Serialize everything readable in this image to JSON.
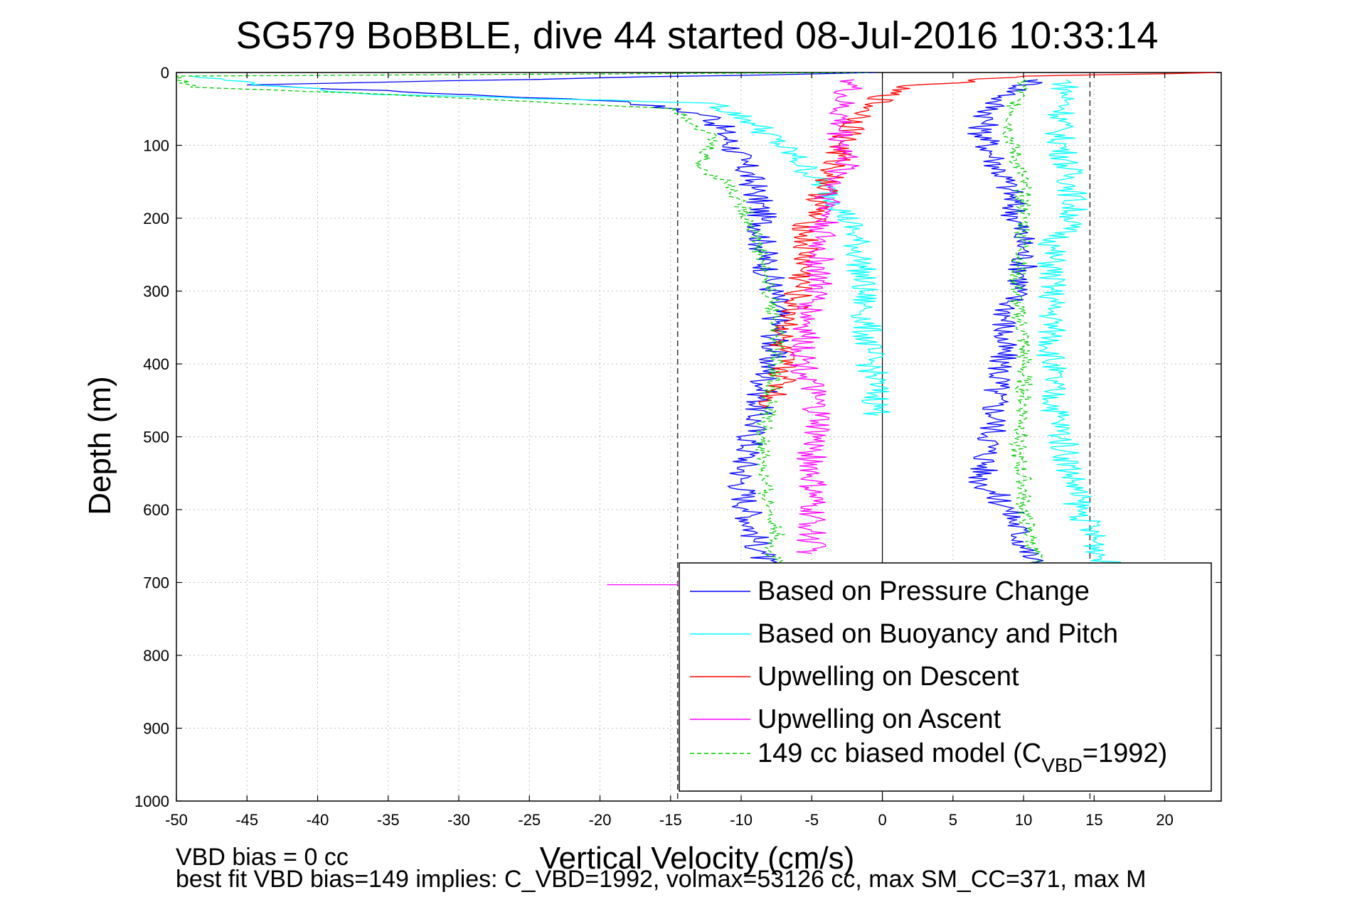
{
  "chart_data": {
    "type": "line",
    "title": "SG579 BoBBLE, dive 44 started 08-Jul-2016 10:33:14",
    "xlabel": "Vertical Velocity (cm/s)",
    "ylabel": "Depth (m)",
    "xlim": [
      -50,
      24
    ],
    "ylim": [
      0,
      1000
    ],
    "y_reversed": true,
    "grid": true,
    "xticks": [
      -50,
      -45,
      -40,
      -35,
      -30,
      -25,
      -20,
      -15,
      -10,
      -5,
      0,
      5,
      10,
      15,
      20
    ],
    "yticks": [
      0,
      100,
      200,
      300,
      400,
      500,
      600,
      700,
      800,
      900,
      1000
    ],
    "reference_lines": {
      "dashed_x": [
        -14.5,
        14.7
      ],
      "solid_x": [
        0
      ]
    },
    "legend_position": "bottom-right",
    "legend": [
      {
        "label": "Based on Pressure Change",
        "color": "#0000ff",
        "dash": false
      },
      {
        "label": "Based on Buoyancy and Pitch",
        "color": "#00ffff",
        "dash": false
      },
      {
        "label": "Upwelling on Descent",
        "color": "#ff0000",
        "dash": false
      },
      {
        "label": "Upwelling on Ascent",
        "color": "#ff00ff",
        "dash": false
      },
      {
        "label_main": "149 cc biased model (C",
        "label_sub": "VBD",
        "label_tail": "=1992)",
        "color": "#00cc00",
        "dash": true
      }
    ],
    "series": [
      {
        "name": "Based on Pressure Change",
        "color": "#0000ff",
        "dash": false,
        "x": [
          -0.5,
          -45,
          -18,
          -12,
          -11,
          -10,
          -9,
          -8.5,
          -8.5,
          -8,
          -7.5,
          -7.5,
          -8,
          -8.5,
          -9,
          -9.5,
          -10,
          -9.5,
          -9,
          -8.5,
          -8.5,
          -8.5
        ],
        "y": [
          0,
          17,
          40,
          60,
          90,
          120,
          160,
          200,
          240,
          280,
          320,
          360,
          400,
          440,
          480,
          520,
          560,
          600,
          640,
          660,
          690,
          700
        ]
      },
      {
        "name": "Based on Pressure Change (ascent)",
        "color": "#0000ff",
        "dash": false,
        "x": [
          11,
          8,
          7,
          8,
          9,
          9.5,
          10,
          10,
          9,
          8.5,
          8.5,
          8,
          8,
          7.5,
          7,
          9,
          11
        ],
        "y": [
          10,
          40,
          80,
          120,
          160,
          200,
          240,
          280,
          320,
          360,
          400,
          440,
          480,
          520,
          560,
          600,
          690
        ]
      },
      {
        "name": "Based on Buoyancy and Pitch",
        "color": "#00ffff",
        "dash": false,
        "x": [
          -49,
          -42,
          -36,
          -12,
          -9,
          -6,
          -3,
          -2,
          -1.5,
          -1.3,
          -1,
          -0.5,
          -0.3
        ],
        "y": [
          5,
          20,
          30,
          42,
          70,
          120,
          180,
          220,
          260,
          320,
          380,
          430,
          470
        ]
      },
      {
        "name": "Based on Buoyancy and Pitch (ascent)",
        "color": "#00ffff",
        "dash": false,
        "x": [
          13,
          13,
          12.5,
          13,
          13.5,
          13.5,
          12,
          12,
          12,
          12,
          12,
          12,
          12.5,
          13,
          14,
          16
        ],
        "y": [
          10,
          40,
          80,
          120,
          160,
          200,
          240,
          280,
          320,
          360,
          400,
          440,
          480,
          520,
          600,
          680
        ]
      },
      {
        "name": "Upwelling on Descent",
        "color": "#ff0000",
        "dash": false,
        "x": [
          24,
          10,
          1,
          -1,
          -3,
          -3.5,
          -4.5,
          -5.5,
          -5.5,
          -6,
          -6.5,
          -7.5,
          -7,
          -7,
          -7.5,
          -8.5
        ],
        "y": [
          0,
          5,
          20,
          50,
          100,
          140,
          180,
          220,
          260,
          300,
          340,
          370,
          400,
          420,
          440,
          460
        ]
      },
      {
        "name": "Upwelling on Ascent",
        "color": "#ff00ff",
        "dash": false,
        "x": [
          -2,
          -3,
          -3,
          -2.5,
          -3.5,
          -4,
          -4.5,
          -4.5,
          -5,
          -5.5,
          -5.5,
          -5,
          -4.5,
          -5,
          -5,
          -5,
          -5
        ],
        "y": [
          10,
          40,
          80,
          120,
          160,
          200,
          240,
          280,
          320,
          360,
          400,
          440,
          480,
          520,
          560,
          600,
          660
        ]
      },
      {
        "name": "Upwelling on Ascent spike",
        "color": "#ff00ff",
        "dash": false,
        "x": [
          -19.5,
          -14.5,
          -14.5
        ],
        "y": [
          703,
          703,
          700
        ]
      },
      {
        "name": "149 cc biased model",
        "color": "#00cc00",
        "dash": true,
        "x": [
          -1,
          -50,
          -49,
          -35,
          -14.5,
          -12,
          -13,
          -11,
          -10,
          -9,
          -8.5,
          -8,
          -7.5,
          -7.5,
          -8,
          -8.5,
          -8.5,
          -8,
          -7.5,
          -7.5,
          -8,
          -7,
          -7
        ],
        "y": [
          0,
          5,
          20,
          30,
          50,
          90,
          130,
          150,
          180,
          220,
          260,
          300,
          350,
          400,
          450,
          500,
          560,
          600,
          620,
          640,
          660,
          680,
          700
        ]
      },
      {
        "name": "149 cc biased model (ascent)",
        "color": "#00cc00",
        "dash": true,
        "x": [
          10,
          9.5,
          9,
          9.5,
          10,
          10,
          10,
          9.5,
          9.5,
          10,
          10,
          10,
          10,
          9.5,
          10,
          10,
          10.5,
          11
        ],
        "y": [
          10,
          40,
          80,
          120,
          160,
          200,
          240,
          280,
          320,
          360,
          400,
          440,
          480,
          520,
          560,
          600,
          640,
          680
        ]
      }
    ],
    "footer_lines": [
      "VBD bias = 0 cc",
      "best fit VBD bias=149 implies: C_VBD=1992, volmax=53126 cc, max SM_CC=371, max M"
    ]
  }
}
